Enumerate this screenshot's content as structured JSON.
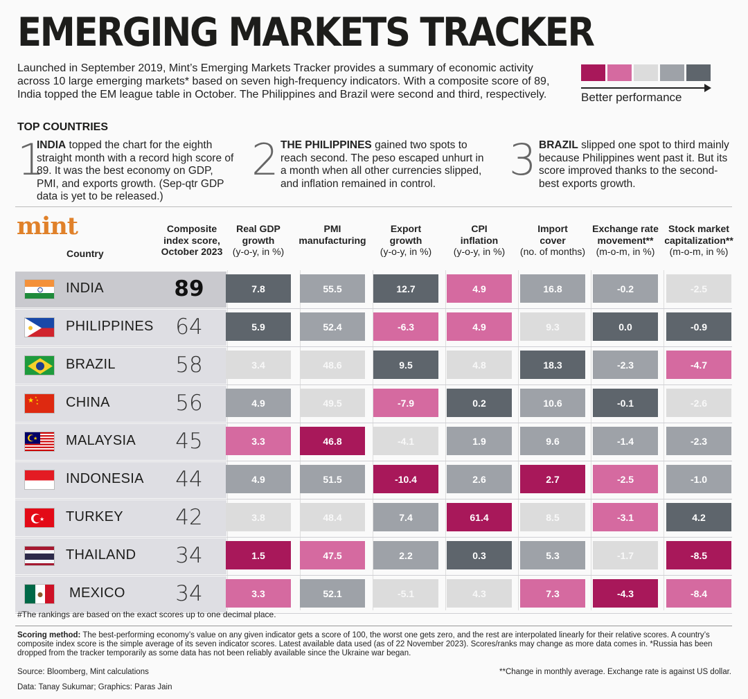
{
  "title": "EMERGING MARKETS TRACKER",
  "intro": "Launched in September 2019, Mint’s Emerging Markets Tracker provides a summary of economic activity across 10 large emerging markets* based on seven high-frequency indicators. With a composite score of 89, India topped the EM league table in October. The Philippines and Brazil were second and third, respectively.",
  "legend": {
    "label": "Better performance",
    "colors": [
      "#a8185a",
      "#d56aa0",
      "#dcdcdc",
      "#9ea2a8",
      "#5e656c"
    ]
  },
  "top_countries": {
    "header": "TOP COUNTRIES",
    "items": [
      {
        "num": "1",
        "name": "INDIA",
        "text": " topped the chart for the eighth straight month with a record high score of 89. It was the best economy on GDP, PMI, and exports growth. (Sep-qtr GDP data is yet to be released.)"
      },
      {
        "num": "2",
        "name": "THE PHILIPPINES",
        "text": " gained two spots to reach second. The peso escaped unhurt in a month when all other currencies slipped, and inflation remained in control."
      },
      {
        "num": "3",
        "name": "BRAZIL",
        "text": " slipped one spot to third mainly because Philippines went past it. But its score improved thanks to the second-best exports growth."
      }
    ]
  },
  "brand": "mint",
  "chart_data": {
    "type": "table",
    "country_header": "Country",
    "columns": [
      {
        "title": "Composite index score, October 2023",
        "bold": "Composite",
        "sub": "index score,",
        "sub2": "October 2023"
      },
      {
        "title": "Real GDP growth (y-o-y, in %)",
        "bold": "Real GDP",
        "sub": "growth",
        "sub2": "(y-o-y, in %)"
      },
      {
        "title": "PMI manufacturing",
        "bold": "PMI",
        "sub": "manufacturing",
        "sub2": ""
      },
      {
        "title": "Export growth (y-o-y, in %)",
        "bold": "Export",
        "sub": "growth",
        "sub2": "(y-o-y, in %)"
      },
      {
        "title": "CPI inflation (y-o-y, in %)",
        "bold": "CPI",
        "sub": "inflation",
        "sub2": "(y-o-y, in %)"
      },
      {
        "title": "Import cover (no. of months)",
        "bold": "Import",
        "sub": "cover",
        "sub2": "(no. of months)"
      },
      {
        "title": "Exchange rate movement** (m-o-m, in %)",
        "bold": "Exchange rate",
        "sub": "movement**",
        "sub2": "(m-o-m, in %)"
      },
      {
        "title": "Stock market capitalization** (m-o-m, in %)",
        "bold": "Stock market",
        "sub": "capitalization**",
        "sub2": "(m-o-m, in %)"
      }
    ],
    "rows": [
      {
        "country": "INDIA",
        "flag": "india",
        "score": 89,
        "values": [
          "7.8",
          "55.5",
          "12.7",
          "4.9",
          "16.8",
          "-0.2",
          "-2.5"
        ],
        "levels": [
          4,
          3,
          4,
          1,
          3,
          3,
          2
        ]
      },
      {
        "country": "PHILIPPINES",
        "flag": "philippines",
        "score": 64,
        "values": [
          "5.9",
          "52.4",
          "-6.3",
          "4.9",
          "9.3",
          "0.0",
          "-0.9"
        ],
        "levels": [
          4,
          3,
          1,
          1,
          2,
          4,
          4
        ]
      },
      {
        "country": "BRAZIL",
        "flag": "brazil",
        "score": 58,
        "values": [
          "3.4",
          "48.6",
          "9.5",
          "4.8",
          "18.3",
          "-2.3",
          "-4.7"
        ],
        "levels": [
          2,
          2,
          4,
          2,
          4,
          3,
          1
        ]
      },
      {
        "country": "CHINA",
        "flag": "china",
        "score": 56,
        "values": [
          "4.9",
          "49.5",
          "-7.9",
          "0.2",
          "10.6",
          "-0.1",
          "-2.6"
        ],
        "levels": [
          3,
          2,
          1,
          4,
          3,
          4,
          2
        ]
      },
      {
        "country": "MALAYSIA",
        "flag": "malaysia",
        "score": 45,
        "values": [
          "3.3",
          "46.8",
          "-4.1",
          "1.9",
          "9.6",
          "-1.4",
          "-2.3"
        ],
        "levels": [
          1,
          0,
          2,
          3,
          3,
          3,
          3
        ]
      },
      {
        "country": "INDONESIA",
        "flag": "indonesia",
        "score": 44,
        "values": [
          "4.9",
          "51.5",
          "-10.4",
          "2.6",
          "2.7",
          "-2.5",
          "-1.0"
        ],
        "levels": [
          3,
          3,
          0,
          3,
          0,
          1,
          3
        ]
      },
      {
        "country": "TURKEY",
        "flag": "turkey",
        "score": 42,
        "values": [
          "3.8",
          "48.4",
          "7.4",
          "61.4",
          "8.5",
          "-3.1",
          "4.2"
        ],
        "levels": [
          2,
          2,
          3,
          0,
          2,
          1,
          4
        ]
      },
      {
        "country": "THAILAND",
        "flag": "thailand",
        "score": 34,
        "values": [
          "1.5",
          "47.5",
          "2.2",
          "0.3",
          "5.3",
          "-1.7",
          "-8.5"
        ],
        "levels": [
          0,
          1,
          3,
          4,
          3,
          2,
          0
        ]
      },
      {
        "country": "MEXICO",
        "flag": "mexico",
        "score": 34,
        "values": [
          "3.3",
          "52.1",
          "-5.1",
          "4.3",
          "7.3",
          "-4.3",
          "-8.4"
        ],
        "levels": [
          1,
          3,
          2,
          2,
          1,
          0,
          1
        ]
      }
    ],
    "level_colors": [
      "#a8185a",
      "#d56aa0",
      "#dcdcdc",
      "#9ea2a8",
      "#5e656c"
    ]
  },
  "footnote": "#The rankings are based on the exact scores up to one decimal place.",
  "method_label": "Scoring method:",
  "method_text": " The best-performing economy’s value on any given indicator gets a score of 100, the worst one gets zero, and the rest are interpolated linearly for their relative scores. A country’s composite index score is the simple average of its seven indicator scores. Latest available data used (as of 22 November 2023). Scores/ranks may change as more data comes in. *Russia has been dropped from the tracker temporarily as some data has not been reliably available since the Ukraine war began.",
  "source": "Source: Bloomberg, Mint calculations",
  "credit": "Data: Tanay Sukumar; Graphics: Paras Jain",
  "note2": "**Change in monthly average. Exchange rate is against US dollar."
}
